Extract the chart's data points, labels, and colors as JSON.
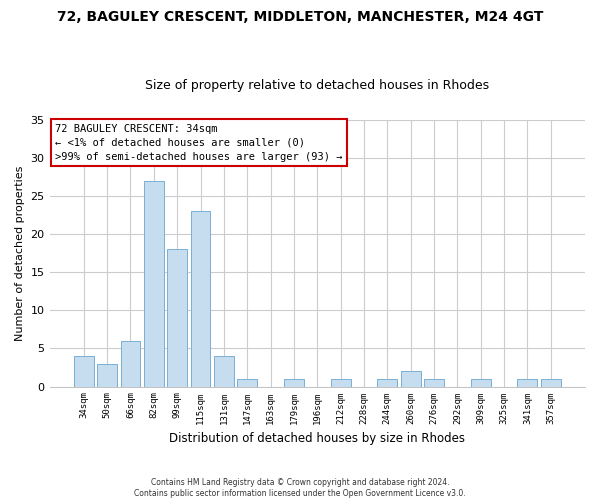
{
  "title": "72, BAGULEY CRESCENT, MIDDLETON, MANCHESTER, M24 4GT",
  "subtitle": "Size of property relative to detached houses in Rhodes",
  "xlabel": "Distribution of detached houses by size in Rhodes",
  "ylabel": "Number of detached properties",
  "bar_labels": [
    "34sqm",
    "50sqm",
    "66sqm",
    "82sqm",
    "99sqm",
    "115sqm",
    "131sqm",
    "147sqm",
    "163sqm",
    "179sqm",
    "196sqm",
    "212sqm",
    "228sqm",
    "244sqm",
    "260sqm",
    "276sqm",
    "292sqm",
    "309sqm",
    "325sqm",
    "341sqm",
    "357sqm"
  ],
  "bar_heights": [
    4,
    3,
    6,
    27,
    18,
    23,
    4,
    1,
    0,
    1,
    0,
    1,
    0,
    1,
    2,
    1,
    0,
    1,
    0,
    1,
    1
  ],
  "bar_color": "#c6ddef",
  "bar_edge_color": "#7aafd4",
  "ylim": [
    0,
    35
  ],
  "yticks": [
    0,
    5,
    10,
    15,
    20,
    25,
    30,
    35
  ],
  "annotation_title": "72 BAGULEY CRESCENT: 34sqm",
  "annotation_line1": "← <1% of detached houses are smaller (0)",
  "annotation_line2": ">99% of semi-detached houses are larger (93) →",
  "annotation_box_color": "#ffffff",
  "annotation_box_edge": "#cc0000",
  "footer_line1": "Contains HM Land Registry data © Crown copyright and database right 2024.",
  "footer_line2": "Contains public sector information licensed under the Open Government Licence v3.0.",
  "background_color": "#ffffff",
  "grid_color": "#cccccc",
  "title_fontsize": 10,
  "subtitle_fontsize": 9
}
